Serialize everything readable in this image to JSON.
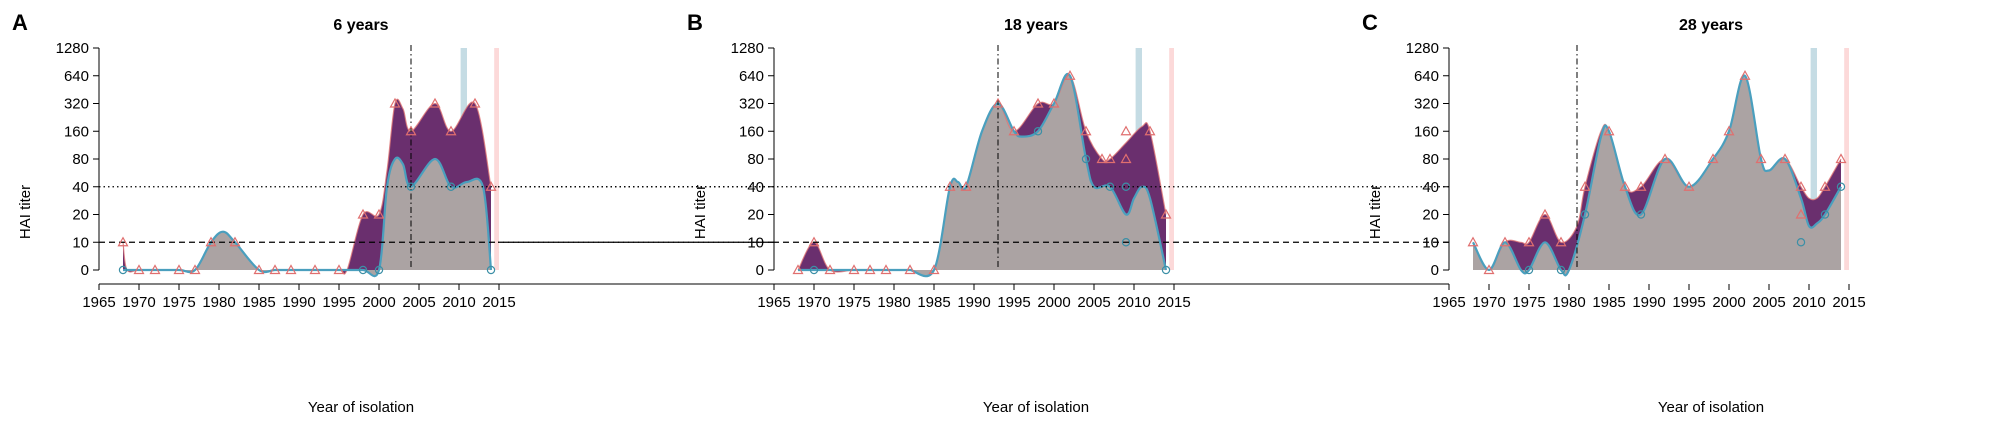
{
  "colors": {
    "area_lower": "#aba3a3",
    "area_upper": "#6a2f6e",
    "lower_line": "#4a9fbe",
    "upper_line": "#e07777",
    "green_line": "#5a9a3e",
    "triangle_marker": "#e06f6f",
    "circle_marker": "#3b8fa6",
    "blue_band": "#c5dce4",
    "pink_band": "#fcd9d9"
  },
  "chart_data": [
    {
      "type": "area",
      "panel": "A",
      "title": "6 years",
      "xlabel": "Year of isolation",
      "ylabel": "HAI titer",
      "xlim": [
        1965,
        2015
      ],
      "x_ticks": [
        1965,
        1970,
        1975,
        1980,
        1985,
        1990,
        1995,
        2000,
        2005,
        2010,
        2015
      ],
      "y_tick_labels": [
        "0",
        "10",
        "20",
        "40",
        "80",
        "160",
        "320",
        "640",
        "1280"
      ],
      "y_scale": "log2 titer",
      "reference_lines": {
        "dotted": 40,
        "dashed": 10,
        "vertical_dashdot": 2004
      },
      "bands": {
        "blue": [
          2010.2,
          2011
        ],
        "pink": [
          2014.4,
          2015
        ]
      },
      "upper_series": [
        [
          1968,
          10
        ],
        [
          1968.5,
          5
        ],
        [
          1970,
          0
        ],
        [
          1972,
          0
        ],
        [
          1975,
          0
        ],
        [
          1977,
          0
        ],
        [
          1979,
          10
        ],
        [
          1980.5,
          13
        ],
        [
          1982,
          10
        ],
        [
          1985,
          0
        ],
        [
          1987,
          0
        ],
        [
          1989,
          0
        ],
        [
          1992,
          0
        ],
        [
          1995,
          0
        ],
        [
          1996,
          5
        ],
        [
          1998,
          20
        ],
        [
          2000,
          20
        ],
        [
          2001,
          60
        ],
        [
          2002,
          320
        ],
        [
          2003,
          280
        ],
        [
          2004,
          160
        ],
        [
          2007,
          320
        ],
        [
          2009,
          160
        ],
        [
          2012,
          320
        ],
        [
          2014,
          40
        ]
      ],
      "lower_series": [
        [
          1968,
          0
        ],
        [
          1970,
          0
        ],
        [
          1972,
          0
        ],
        [
          1975,
          0
        ],
        [
          1977,
          0
        ],
        [
          1979,
          10
        ],
        [
          1980.5,
          13
        ],
        [
          1982,
          10
        ],
        [
          1985,
          0
        ],
        [
          1987,
          0
        ],
        [
          1989,
          0
        ],
        [
          1992,
          0
        ],
        [
          1995,
          0
        ],
        [
          1998,
          0
        ],
        [
          2000,
          0
        ],
        [
          2001,
          40
        ],
        [
          2002,
          80
        ],
        [
          2003,
          70
        ],
        [
          2004,
          40
        ],
        [
          2007,
          80
        ],
        [
          2009,
          40
        ],
        [
          2011,
          45
        ],
        [
          2013,
          40
        ],
        [
          2014,
          0
        ]
      ],
      "triangles": [
        [
          1968,
          10
        ],
        [
          1970,
          0
        ],
        [
          1972,
          0
        ],
        [
          1975,
          0
        ],
        [
          1977,
          0
        ],
        [
          1979,
          10
        ],
        [
          1982,
          10
        ],
        [
          1985,
          0
        ],
        [
          1987,
          0
        ],
        [
          1989,
          0
        ],
        [
          1992,
          0
        ],
        [
          1995,
          0
        ],
        [
          1998,
          20
        ],
        [
          2000,
          20
        ],
        [
          2002,
          320
        ],
        [
          2004,
          160
        ],
        [
          2007,
          320
        ],
        [
          2009,
          160
        ],
        [
          2012,
          320
        ],
        [
          2014,
          40
        ]
      ],
      "circles": [
        [
          1968,
          0
        ],
        [
          1998,
          0
        ],
        [
          2000,
          0
        ],
        [
          2004,
          40
        ],
        [
          2009,
          40
        ],
        [
          2014,
          0
        ]
      ]
    },
    {
      "type": "area",
      "panel": "B",
      "title": "18 years",
      "xlabel": "Year of isolation",
      "ylabel": "HAI titer",
      "xlim": [
        1965,
        2015
      ],
      "x_ticks": [
        1965,
        1970,
        1975,
        1980,
        1985,
        1990,
        1995,
        2000,
        2005,
        2010,
        2015
      ],
      "y_tick_labels": [
        "0",
        "10",
        "20",
        "40",
        "80",
        "160",
        "320",
        "640",
        "1280"
      ],
      "y_scale": "log2 titer",
      "reference_lines": {
        "dotted": 40,
        "dashed": 10,
        "vertical_dashdot": 1993
      },
      "bands": {
        "blue": [
          2010.2,
          2011
        ],
        "pink": [
          2014.4,
          2015
        ]
      },
      "upper_series": [
        [
          1968,
          0
        ],
        [
          1970,
          10
        ],
        [
          1972,
          0
        ],
        [
          1975,
          0
        ],
        [
          1977,
          0
        ],
        [
          1979,
          0
        ],
        [
          1981,
          1
        ],
        [
          1982,
          0
        ],
        [
          1985,
          0
        ],
        [
          1987,
          40
        ],
        [
          1988,
          45
        ],
        [
          1989,
          40
        ],
        [
          1991,
          160
        ],
        [
          1993,
          320
        ],
        [
          1995,
          160
        ],
        [
          1998,
          320
        ],
        [
          2000,
          320
        ],
        [
          2002,
          640
        ],
        [
          2004,
          160
        ],
        [
          2006,
          80
        ],
        [
          2007,
          80
        ],
        [
          2009,
          120
        ],
        [
          2011,
          180
        ],
        [
          2012,
          160
        ],
        [
          2014,
          20
        ]
      ],
      "lower_series": [
        [
          1968,
          0
        ],
        [
          1970,
          0
        ],
        [
          1972,
          0
        ],
        [
          1975,
          0
        ],
        [
          1977,
          0
        ],
        [
          1979,
          0
        ],
        [
          1981,
          1
        ],
        [
          1982,
          0
        ],
        [
          1985,
          0
        ],
        [
          1987,
          40
        ],
        [
          1988,
          45
        ],
        [
          1989,
          40
        ],
        [
          1991,
          160
        ],
        [
          1993,
          320
        ],
        [
          1995,
          160
        ],
        [
          1996,
          140
        ],
        [
          1998,
          160
        ],
        [
          2000,
          320
        ],
        [
          2002,
          640
        ],
        [
          2004,
          80
        ],
        [
          2005,
          40
        ],
        [
          2007,
          40
        ],
        [
          2009,
          20
        ],
        [
          2010,
          30
        ],
        [
          2011,
          40
        ],
        [
          2012,
          30
        ],
        [
          2014,
          0
        ]
      ],
      "triangles": [
        [
          1968,
          0
        ],
        [
          1970,
          10
        ],
        [
          1972,
          0
        ],
        [
          1975,
          0
        ],
        [
          1977,
          0
        ],
        [
          1979,
          0
        ],
        [
          1982,
          0
        ],
        [
          1985,
          0
        ],
        [
          1987,
          40
        ],
        [
          1989,
          40
        ],
        [
          1993,
          320
        ],
        [
          1995,
          160
        ],
        [
          1998,
          320
        ],
        [
          2000,
          320
        ],
        [
          2002,
          640
        ],
        [
          2004,
          160
        ],
        [
          2006,
          80
        ],
        [
          2007,
          80
        ],
        [
          2009,
          160
        ],
        [
          2009,
          80
        ],
        [
          2012,
          160
        ],
        [
          2014,
          20
        ]
      ],
      "circles": [
        [
          1970,
          0
        ],
        [
          1998,
          160
        ],
        [
          2004,
          80
        ],
        [
          2007,
          40
        ],
        [
          2009,
          40
        ],
        [
          2009,
          10
        ],
        [
          2014,
          0
        ]
      ]
    },
    {
      "type": "area",
      "panel": "C",
      "title": "28 years",
      "xlabel": "Year of isolation",
      "ylabel": "HAI titer",
      "xlim": [
        1965,
        2015
      ],
      "x_ticks": [
        1965,
        1970,
        1975,
        1980,
        1985,
        1990,
        1995,
        2000,
        2005,
        2010,
        2015
      ],
      "y_tick_labels": [
        "0",
        "10",
        "20",
        "40",
        "80",
        "160",
        "320",
        "640",
        "1280"
      ],
      "y_scale": "log2 titer",
      "reference_lines": {
        "dotted": 40,
        "dashed": 10,
        "vertical_dashdot": 1981
      },
      "bands": {
        "blue": [
          2010.2,
          2011
        ],
        "pink": [
          2014.4,
          2015
        ]
      },
      "upper_series": [
        [
          1968,
          10
        ],
        [
          1970,
          0
        ],
        [
          1972,
          10
        ],
        [
          1974,
          10
        ],
        [
          1975,
          10
        ],
        [
          1977,
          20
        ],
        [
          1979,
          10
        ],
        [
          1981,
          15
        ],
        [
          1982,
          40
        ],
        [
          1984,
          160
        ],
        [
          1985,
          160
        ],
        [
          1987,
          40
        ],
        [
          1989,
          40
        ],
        [
          1992,
          80
        ],
        [
          1995,
          40
        ],
        [
          1998,
          80
        ],
        [
          2000,
          160
        ],
        [
          2002,
          640
        ],
        [
          2004,
          80
        ],
        [
          2005,
          60
        ],
        [
          2007,
          80
        ],
        [
          2009,
          40
        ],
        [
          2010,
          30
        ],
        [
          2011,
          30
        ],
        [
          2012,
          40
        ],
        [
          2014,
          80
        ]
      ],
      "lower_series": [
        [
          1968,
          10
        ],
        [
          1970,
          0
        ],
        [
          1972,
          10
        ],
        [
          1974,
          5
        ],
        [
          1975,
          0
        ],
        [
          1977,
          10
        ],
        [
          1979,
          0
        ],
        [
          1980,
          5
        ],
        [
          1982,
          20
        ],
        [
          1984,
          140
        ],
        [
          1985,
          160
        ],
        [
          1987,
          40
        ],
        [
          1989,
          20
        ],
        [
          1992,
          80
        ],
        [
          1995,
          40
        ],
        [
          1998,
          80
        ],
        [
          2000,
          160
        ],
        [
          2002,
          640
        ],
        [
          2004,
          80
        ],
        [
          2005,
          60
        ],
        [
          2007,
          80
        ],
        [
          2009,
          30
        ],
        [
          2010,
          15
        ],
        [
          2011,
          16
        ],
        [
          2012,
          20
        ],
        [
          2014,
          40
        ]
      ],
      "triangles": [
        [
          1968,
          10
        ],
        [
          1970,
          0
        ],
        [
          1972,
          10
        ],
        [
          1975,
          10
        ],
        [
          1977,
          20
        ],
        [
          1979,
          10
        ],
        [
          1982,
          40
        ],
        [
          1985,
          160
        ],
        [
          1987,
          40
        ],
        [
          1989,
          40
        ],
        [
          1992,
          80
        ],
        [
          1995,
          40
        ],
        [
          1998,
          80
        ],
        [
          2000,
          160
        ],
        [
          2002,
          640
        ],
        [
          2004,
          80
        ],
        [
          2007,
          80
        ],
        [
          2009,
          40
        ],
        [
          2009,
          20
        ],
        [
          2012,
          40
        ],
        [
          2014,
          80
        ]
      ],
      "circles": [
        [
          1975,
          0
        ],
        [
          1979,
          0
        ],
        [
          1982,
          20
        ],
        [
          1989,
          20
        ],
        [
          2009,
          10
        ],
        [
          2012,
          20
        ],
        [
          2014,
          40
        ]
      ]
    }
  ]
}
